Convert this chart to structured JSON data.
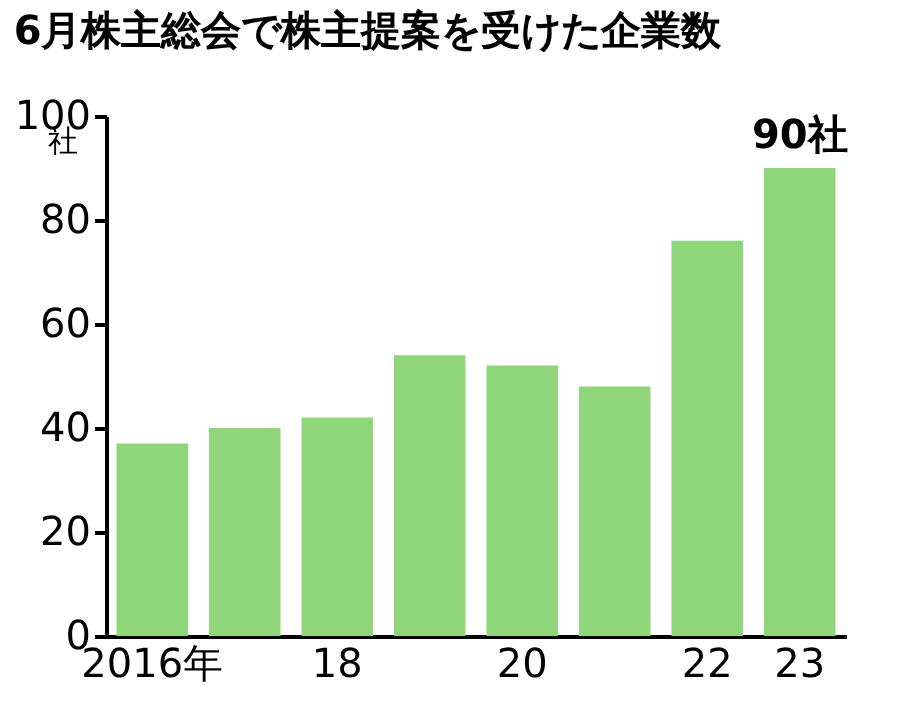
{
  "chart_data": {
    "type": "bar",
    "title": "6月株主総会で株主提案を受けた企業数",
    "ylabel": "社",
    "categories": [
      "2016年",
      null,
      "18",
      null,
      "20",
      null,
      "22",
      "23"
    ],
    "values": [
      37,
      40,
      42,
      54,
      52,
      48,
      76,
      90
    ],
    "value_labels": [
      null,
      null,
      null,
      null,
      null,
      null,
      null,
      "90社"
    ],
    "color": "#8fd67a",
    "ylim": [
      0,
      100
    ],
    "yticks": [
      0,
      20,
      40,
      60,
      80,
      100
    ],
    "grid": false
  }
}
